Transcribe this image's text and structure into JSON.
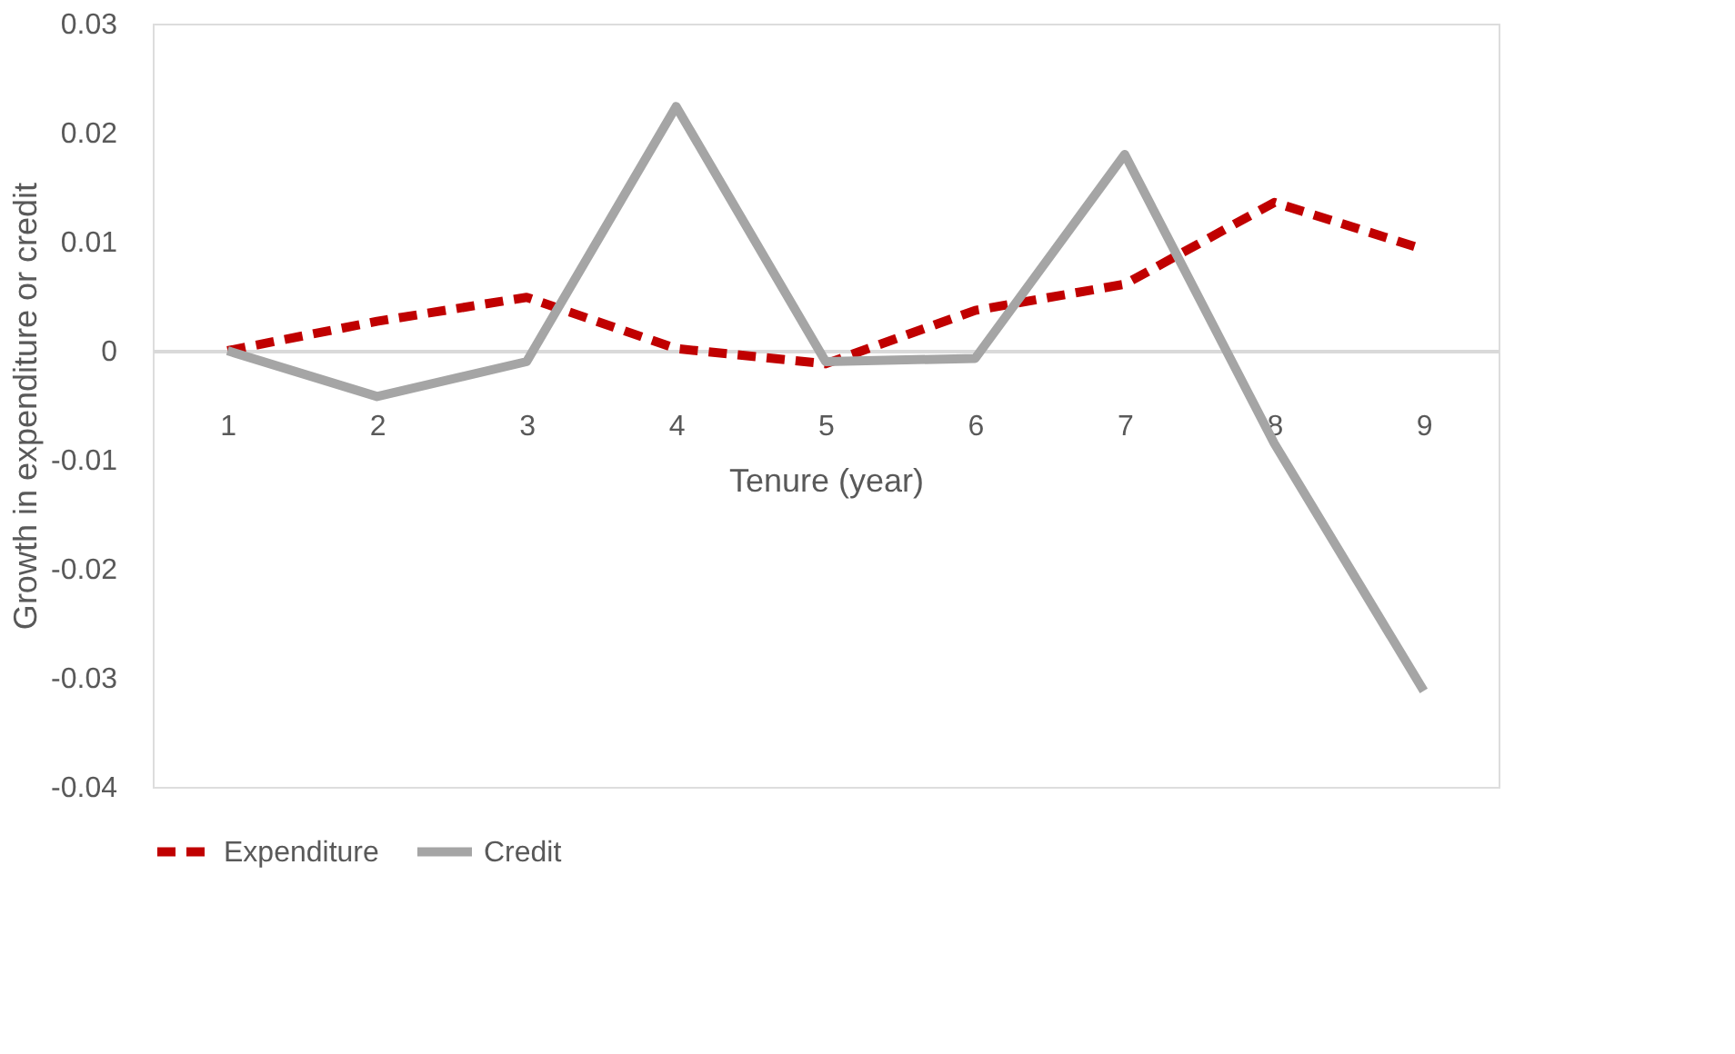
{
  "chart_data": {
    "type": "line",
    "categories": [
      "1",
      "2",
      "3",
      "4",
      "5",
      "6",
      "7",
      "8",
      "9"
    ],
    "series": [
      {
        "name": "Expenditure",
        "color": "#c00000",
        "line_style": "dashed",
        "values": [
          0,
          0.0027,
          0.0049,
          0.0002,
          -0.0012,
          0.0037,
          0.0061,
          0.0136,
          0.0093
        ]
      },
      {
        "name": "Credit",
        "color": "#a5a5a5",
        "line_style": "solid",
        "values": [
          0,
          -0.0042,
          -0.001,
          0.0224,
          -0.001,
          -0.0007,
          0.018,
          -0.0085,
          -0.0312
        ]
      }
    ],
    "xlabel": "Tenure (year)",
    "ylabel": "Growth in expenditure or credit",
    "ylim": [
      -0.04,
      0.03
    ],
    "yticks": [
      -0.04,
      -0.03,
      -0.02,
      -0.01,
      0,
      0.01,
      0.02,
      0.03
    ],
    "grid": false,
    "legend": "bottom",
    "marker": "none"
  }
}
